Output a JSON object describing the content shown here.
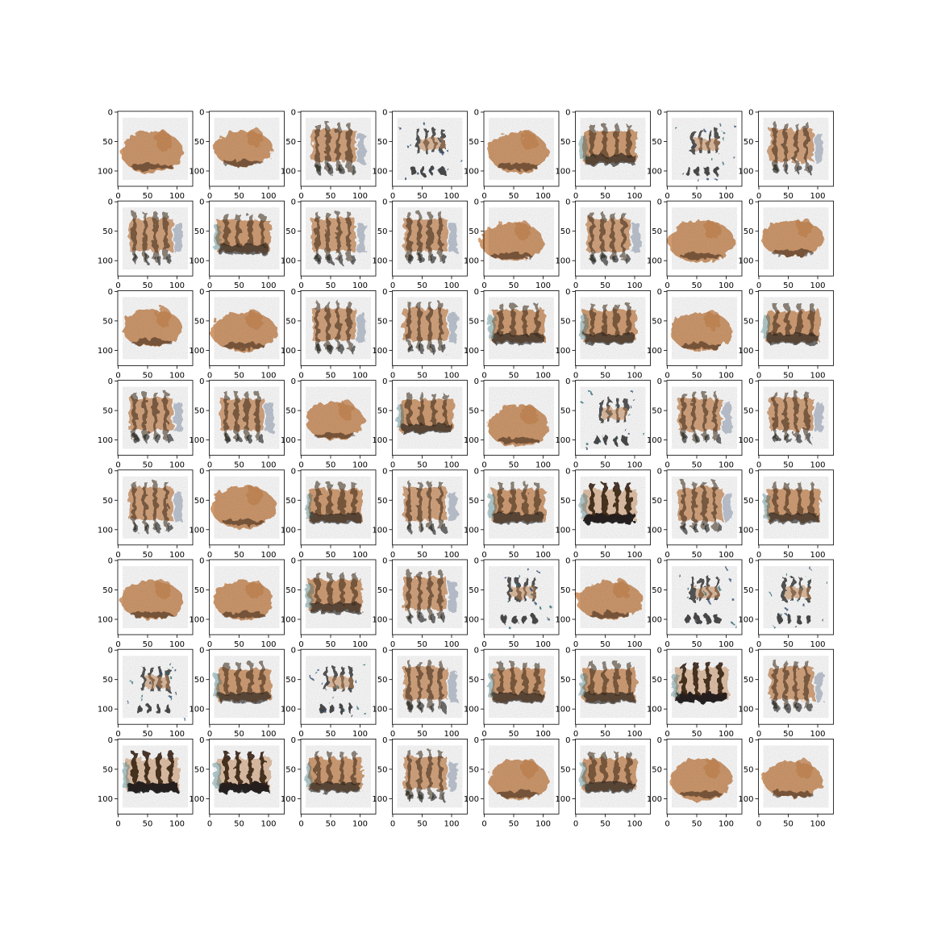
{
  "figure": {
    "description_kind": "8x8 grid of generated image samples with matplotlib axes",
    "rows": 8,
    "cols": 8,
    "x_ticks": [
      "0",
      "50",
      "100"
    ],
    "y_ticks": [
      "0",
      "50",
      "100"
    ],
    "colors": {
      "orange": "#c98a55",
      "dark_brown": "#3a2516",
      "black": "#111111",
      "blue": "#2b4a73",
      "teal": "#2f6f7a",
      "axis": "#000000",
      "background": "#ffffff"
    }
  },
  "samples": [
    "blob",
    "blob-up",
    "patterned",
    "sparse",
    "blob",
    "box",
    "sparse",
    "patterned",
    "patterned",
    "box",
    "patterned",
    "patterned",
    "blob-left",
    "patterned",
    "blob",
    "blob-up",
    "blob-up",
    "blob",
    "patterned",
    "patterned",
    "box",
    "box",
    "blob",
    "box",
    "patterned",
    "patterned",
    "blob",
    "box",
    "blob-low",
    "sparse",
    "patterned",
    "patterned",
    "patterned",
    "blob-up",
    "box",
    "patterned",
    "box",
    "box-dark",
    "patterned",
    "box",
    "blob",
    "blob",
    "box",
    "patterned",
    "sparse",
    "blob",
    "sparse",
    "sparse",
    "sparse",
    "box",
    "sparse",
    "patterned",
    "box",
    "box",
    "box-dark",
    "patterned",
    "box-dark",
    "box-dark",
    "box",
    "patterned",
    "blob",
    "box",
    "blob",
    "blob"
  ]
}
